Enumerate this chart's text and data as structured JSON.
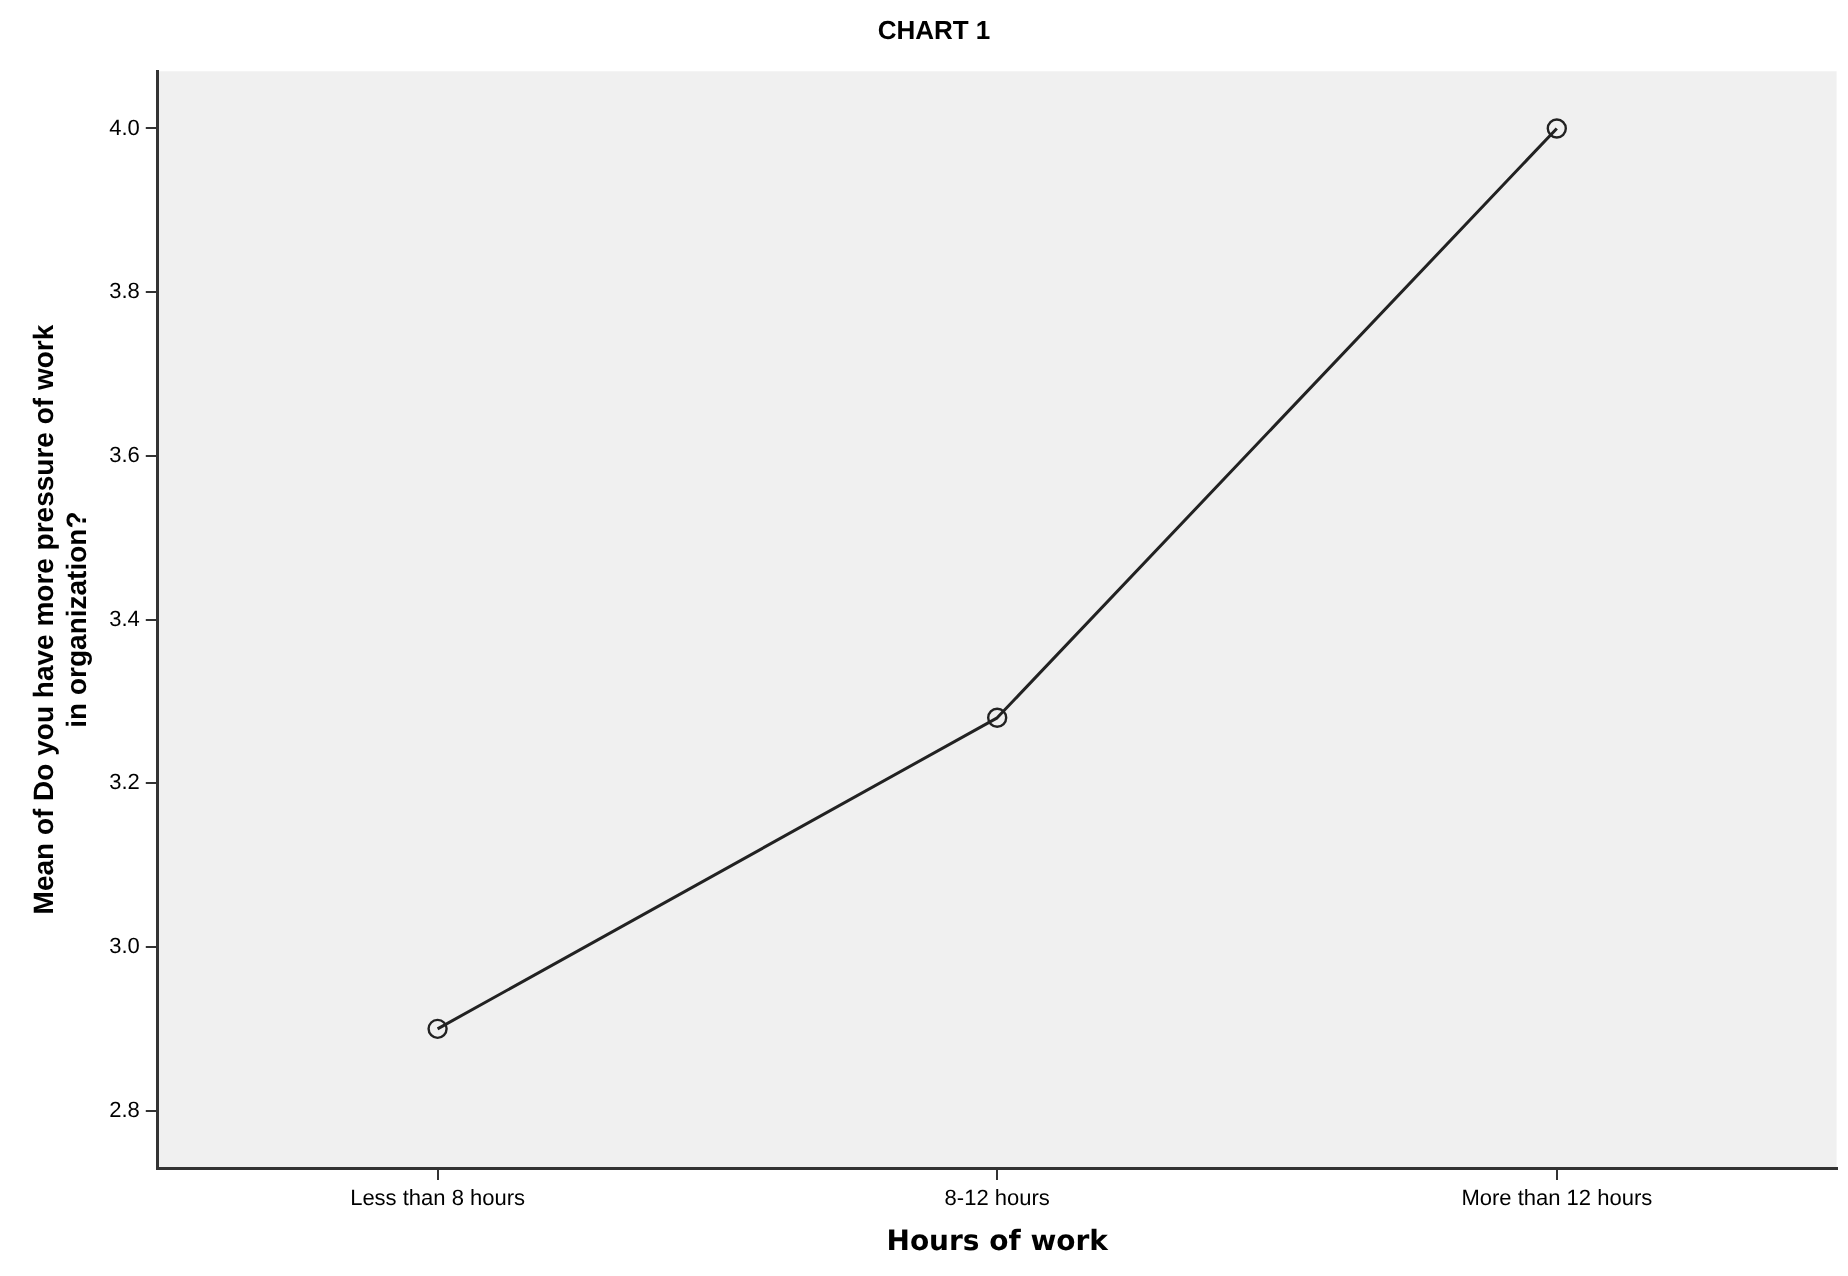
{
  "chart_data": {
    "type": "line",
    "title": "CHART 1",
    "xlabel": "Hours of work",
    "ylabel": "Mean of Do you have more pressure of work in organization?",
    "categories": [
      "Less than 8 hours",
      "8-12 hours",
      "More than 12 hours"
    ],
    "series": [
      {
        "color": "#222222",
        "values": [
          2.9,
          3.28,
          4.0
        ]
      }
    ],
    "ylim": [
      2.73,
      4.07
    ],
    "yticks": [
      2.8,
      {
        "value": 3,
        "label": "3.0"
      },
      3.2,
      3.4,
      3.6,
      3.8,
      {
        "value": 4,
        "label": "4.0"
      }
    ],
    "grid": false,
    "legend": false,
    "marker": "circle",
    "line_style": "solid"
  }
}
